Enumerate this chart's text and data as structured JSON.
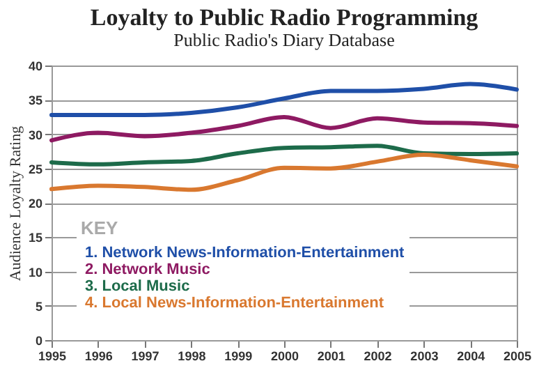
{
  "chart_data": {
    "type": "line",
    "title": "Loyalty to Public Radio Programming",
    "subtitle": "Public Radio's Diary Database",
    "ylabel": "Audience Loyalty Rating",
    "legend_title": "KEY",
    "legend": "bottom left",
    "grid": "y",
    "line_style": "solid",
    "x": [
      1995,
      1996,
      1997,
      1998,
      1999,
      2000,
      2001,
      2002,
      2003,
      2004,
      2005
    ],
    "xlim": [
      1995,
      2005
    ],
    "xticks": [
      1995,
      1996,
      1997,
      1998,
      1999,
      2000,
      2001,
      2002,
      2003,
      2004,
      2005
    ],
    "ylim": [
      0,
      40
    ],
    "yticks": [
      0,
      5,
      10,
      15,
      20,
      25,
      30,
      35,
      40
    ],
    "series": [
      {
        "name": "1. Network News-Information-Entertainment",
        "color": "#1f4fa8",
        "values": [
          32.8,
          32.8,
          32.8,
          33.1,
          33.9,
          35.2,
          36.3,
          36.3,
          36.6,
          37.3,
          36.5
        ]
      },
      {
        "name": "2. Network Music",
        "color": "#8e1a62",
        "values": [
          29.1,
          30.2,
          29.7,
          30.2,
          31.2,
          32.5,
          30.9,
          32.3,
          31.7,
          31.6,
          31.2
        ]
      },
      {
        "name": "3. Local Music",
        "color": "#1d6b4a",
        "values": [
          25.9,
          25.6,
          25.9,
          26.1,
          27.2,
          28.0,
          28.1,
          28.3,
          27.2,
          27.1,
          27.2
        ]
      },
      {
        "name": "4. Local News-Information-Entertainment",
        "color": "#d9782f",
        "values": [
          22.0,
          22.5,
          22.3,
          21.9,
          23.3,
          25.1,
          25.0,
          26.0,
          27.0,
          26.2,
          25.3
        ]
      }
    ]
  }
}
